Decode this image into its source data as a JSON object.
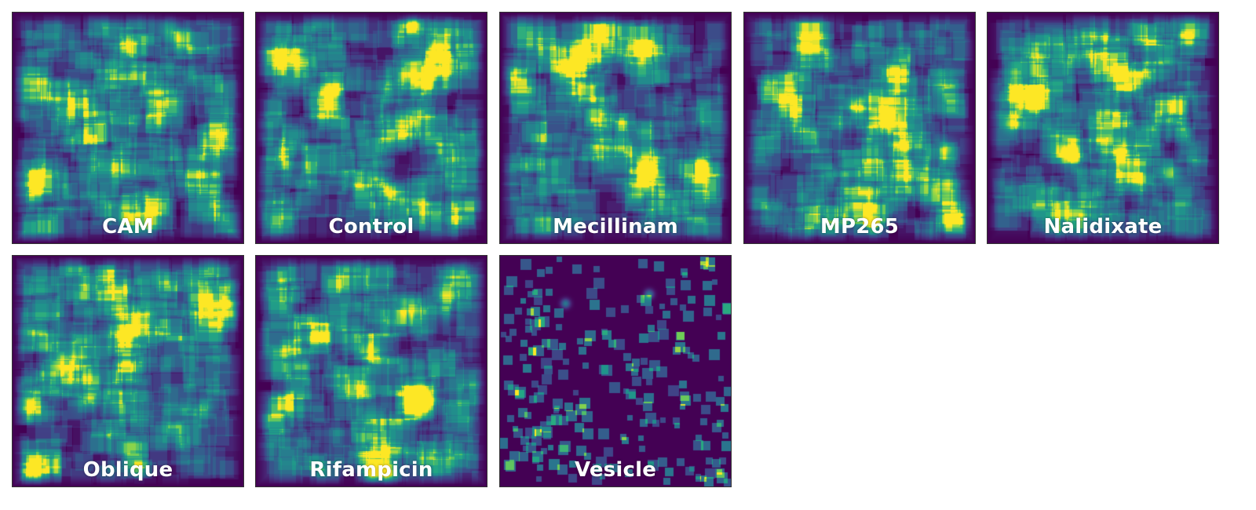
{
  "chart_data": {
    "type": "heatmap",
    "colormap": "viridis",
    "background_color": "#440154",
    "panels": [
      {
        "label": "CAM",
        "density": 0.82,
        "hotspots": 2,
        "seed": 11
      },
      {
        "label": "Control",
        "density": 0.85,
        "hotspots": 6,
        "seed": 23
      },
      {
        "label": "Mecillinam",
        "density": 0.78,
        "hotspots": 2,
        "seed": 37
      },
      {
        "label": "MP265",
        "density": 0.75,
        "hotspots": 6,
        "seed": 41
      },
      {
        "label": "Nalidixate",
        "density": 0.8,
        "hotspots": 5,
        "seed": 53
      },
      {
        "label": "Oblique",
        "density": 0.85,
        "hotspots": 4,
        "seed": 67
      },
      {
        "label": "Rifampicin",
        "density": 0.85,
        "hotspots": 4,
        "seed": 79
      },
      {
        "label": "Vesicle",
        "density": 0.2,
        "hotspots": 2,
        "seed": 97
      }
    ]
  }
}
